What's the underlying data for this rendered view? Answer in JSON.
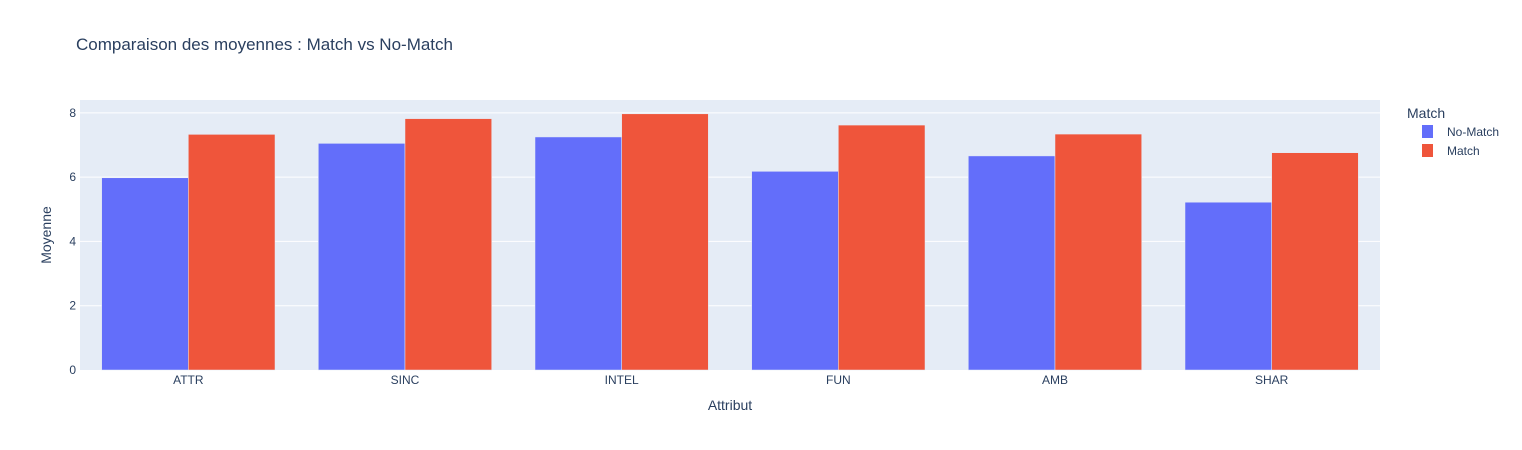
{
  "chart_data": {
    "type": "bar",
    "title": "Comparaison des moyennes : Match vs No-Match",
    "xlabel": "Attribut",
    "ylabel": "Moyenne",
    "categories": [
      "ATTR",
      "SINC",
      "INTEL",
      "FUN",
      "AMB",
      "SHAR"
    ],
    "series": [
      {
        "name": "No-Match",
        "values": [
          5.98,
          7.05,
          7.25,
          6.18,
          6.66,
          5.22
        ],
        "color": "#636efa"
      },
      {
        "name": "Match",
        "values": [
          7.33,
          7.82,
          7.97,
          7.62,
          7.34,
          6.76
        ],
        "color": "#ef553b"
      }
    ],
    "ylim": [
      0,
      8.4
    ],
    "yticks": [
      0,
      2,
      4,
      6,
      8
    ],
    "grid": true,
    "legend_title": "Match",
    "legend_position": "top-right",
    "plot_background": "#e5ecf6"
  }
}
